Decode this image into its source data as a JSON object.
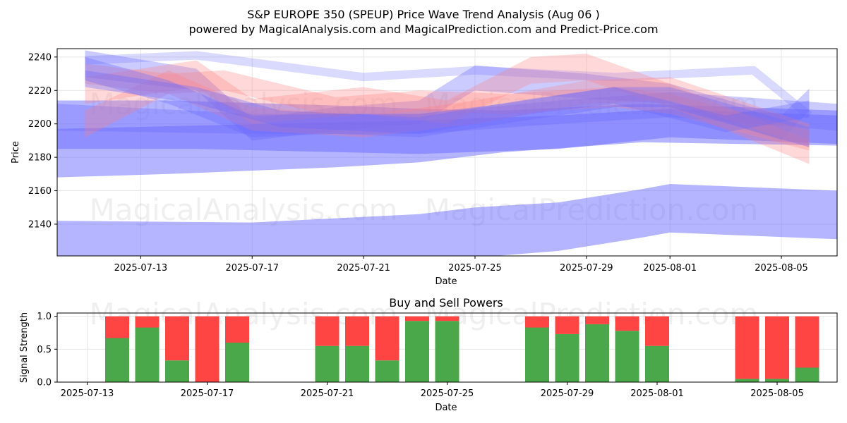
{
  "page": {
    "title_line1": "S&P EUROPE 350 (SPEUP) Price Wave Trend Analysis (Aug 06 )",
    "title_line2": "powered by MagicalAnalysis.com and MagicalPrediction.com and Predict-Price.com",
    "watermarks": [
      "MagicalAnalysis.com",
      "MagicalPrediction.com"
    ]
  },
  "chart_data": [
    {
      "type": "area",
      "title": "",
      "xlabel": "Date",
      "ylabel": "Price",
      "ylim": [
        2121,
        2245
      ],
      "x_range": [
        "2025-07-10",
        "2025-08-07"
      ],
      "x_ticks": [
        "2025-07-13",
        "2025-07-17",
        "2025-07-21",
        "2025-07-25",
        "2025-07-29",
        "2025-08-01",
        "2025-08-05"
      ],
      "y_ticks": [
        2140,
        2160,
        2180,
        2200,
        2220,
        2240
      ],
      "grid": true,
      "colors": {
        "blue_band": "#6a6aff",
        "red_band": "#ff8080"
      },
      "bands": [
        {
          "color": "blue",
          "x": [
            "2025-07-10",
            "2025-07-17",
            "2025-07-23",
            "2025-07-25",
            "2025-07-28",
            "2025-07-31",
            "2025-08-01",
            "2025-08-07"
          ],
          "upper": [
            2142,
            2141,
            2146,
            2150,
            2153,
            2161,
            2164,
            2160
          ],
          "lower": [
            2120,
            2120,
            2120,
            2120,
            2124,
            2132,
            2135,
            2131
          ]
        },
        {
          "color": "blue",
          "x": [
            "2025-07-10",
            "2025-07-14",
            "2025-07-20",
            "2025-07-23",
            "2025-07-26",
            "2025-07-31",
            "2025-08-07"
          ],
          "upper": [
            2214,
            2214,
            2211,
            2209,
            2208,
            2212,
            2208
          ],
          "lower": [
            2168,
            2170,
            2174,
            2177,
            2183,
            2189,
            2187
          ]
        },
        {
          "color": "blue",
          "x": [
            "2025-07-10",
            "2025-07-15",
            "2025-07-23",
            "2025-07-28",
            "2025-08-01",
            "2025-08-07"
          ],
          "upper": [
            2197,
            2199,
            2202,
            2205,
            2209,
            2205
          ],
          "lower": [
            2185,
            2185,
            2182,
            2185,
            2192,
            2188
          ]
        },
        {
          "color": "blue",
          "x": [
            "2025-07-10",
            "2025-07-17",
            "2025-07-23",
            "2025-07-28",
            "2025-08-01",
            "2025-08-07"
          ],
          "upper": [
            2212,
            2206,
            2206,
            2214,
            2219,
            2212
          ],
          "lower": [
            2196,
            2194,
            2194,
            2200,
            2204,
            2196
          ]
        },
        {
          "color": "blue",
          "x": [
            "2025-07-11",
            "2025-07-15",
            "2025-07-17",
            "2025-07-20",
            "2025-07-23",
            "2025-07-25",
            "2025-07-29",
            "2025-08-01",
            "2025-08-05",
            "2025-08-06"
          ],
          "upper": [
            2244,
            2233,
            2203,
            2210,
            2214,
            2235,
            2230,
            2224,
            2205,
            2221
          ],
          "lower": [
            2228,
            2220,
            2190,
            2196,
            2200,
            2220,
            2215,
            2212,
            2190,
            2208
          ]
        },
        {
          "color": "blue",
          "x": [
            "2025-07-11",
            "2025-07-15",
            "2025-07-21",
            "2025-07-25",
            "2025-07-30",
            "2025-08-04",
            "2025-08-06"
          ],
          "upper": [
            2238,
            2241,
            2228,
            2232,
            2228,
            2232,
            2205
          ]
        },
        {
          "color": "red",
          "x": [
            "2025-07-11",
            "2025-07-15",
            "2025-07-17",
            "2025-07-21",
            "2025-07-24",
            "2025-07-27",
            "2025-07-29",
            "2025-08-01",
            "2025-08-06"
          ],
          "upper": [
            2228,
            2238,
            2215,
            2222,
            2214,
            2240,
            2242,
            2224,
            2190
          ],
          "lower": [
            2212,
            2222,
            2200,
            2206,
            2200,
            2224,
            2226,
            2210,
            2176
          ]
        },
        {
          "color": "red",
          "x": [
            "2025-07-11",
            "2025-07-14",
            "2025-07-17",
            "2025-07-21",
            "2025-07-25",
            "2025-07-29",
            "2025-08-01",
            "2025-08-06"
          ],
          "upper": [
            2208,
            2232,
            2210,
            2205,
            2214,
            2226,
            2228,
            2200
          ],
          "lower": [
            2192,
            2218,
            2196,
            2192,
            2200,
            2212,
            2214,
            2186
          ]
        },
        {
          "color": "red",
          "x": [
            "2025-07-11",
            "2025-07-14",
            "2025-07-16",
            "2025-07-20",
            "2025-07-23",
            "2025-07-26",
            "2025-07-30",
            "2025-08-01",
            "2025-08-06"
          ],
          "upper": [
            2236,
            2230,
            2232,
            2216,
            2220,
            2218,
            2222,
            2218,
            2196
          ],
          "lower": [
            2224,
            2218,
            2220,
            2204,
            2208,
            2206,
            2210,
            2206,
            2184
          ]
        },
        {
          "color": "blue",
          "x": [
            "2025-07-11",
            "2025-07-14",
            "2025-07-17",
            "2025-07-20",
            "2025-07-23",
            "2025-07-26",
            "2025-07-30",
            "2025-08-01",
            "2025-08-06"
          ],
          "upper": [
            2240,
            2226,
            2205,
            2206,
            2206,
            2212,
            2222,
            2222,
            2198
          ],
          "lower": [
            2226,
            2212,
            2192,
            2194,
            2192,
            2200,
            2210,
            2210,
            2186
          ]
        },
        {
          "color": "blue",
          "x": [
            "2025-07-11",
            "2025-07-15",
            "2025-07-18",
            "2025-07-23",
            "2025-07-27",
            "2025-07-30",
            "2025-08-03",
            "2025-08-06"
          ],
          "upper": [
            2232,
            2222,
            2208,
            2204,
            2215,
            2222,
            2205,
            2214
          ],
          "lower": [
            2222,
            2212,
            2198,
            2194,
            2206,
            2212,
            2195,
            2204
          ]
        }
      ]
    },
    {
      "type": "bar",
      "title": "Buy and Sell Powers",
      "xlabel": "Date",
      "ylabel": "Signal Strength",
      "ylim": [
        0,
        1.05
      ],
      "x_range": [
        "2025-07-12",
        "2025-08-07"
      ],
      "x_ticks": [
        "2025-07-13",
        "2025-07-17",
        "2025-07-21",
        "2025-07-25",
        "2025-07-29",
        "2025-08-01",
        "2025-08-05"
      ],
      "y_ticks": [
        0.0,
        0.5,
        1.0
      ],
      "grid": true,
      "colors": {
        "buy": "#4aa84a",
        "sell": "#ff4444"
      },
      "x": [
        "2025-07-14",
        "2025-07-15",
        "2025-07-16",
        "2025-07-17",
        "2025-07-18",
        "2025-07-21",
        "2025-07-22",
        "2025-07-23",
        "2025-07-24",
        "2025-07-25",
        "2025-07-28",
        "2025-07-29",
        "2025-07-30",
        "2025-07-31",
        "2025-08-01",
        "2025-08-04",
        "2025-08-05",
        "2025-08-06"
      ],
      "series": [
        {
          "values": [
            0.67,
            0.83,
            0.33,
            0.0,
            0.6,
            0.55,
            0.55,
            0.33,
            0.93,
            0.93,
            0.83,
            0.73,
            0.88,
            0.78,
            0.55,
            0.05,
            0.05,
            0.22
          ]
        },
        {
          "values": [
            0.33,
            0.17,
            0.67,
            1.0,
            0.4,
            0.45,
            0.45,
            0.67,
            0.07,
            0.07,
            0.17,
            0.27,
            0.12,
            0.22,
            0.45,
            0.95,
            0.95,
            0.78
          ]
        }
      ]
    }
  ]
}
